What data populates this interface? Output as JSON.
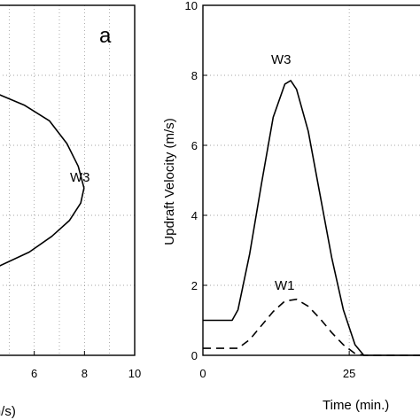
{
  "chart_data": [
    {
      "panel": "a",
      "type": "line",
      "xlabel": "y (m/s)",
      "ylabel": "",
      "xlim": [
        4.6,
        10
      ],
      "ylim": [
        0,
        10
      ],
      "x_ticks": [
        6,
        8,
        10
      ],
      "grid": true,
      "series": [
        {
          "name": "W3",
          "style": "solid",
          "points": [
            [
              4.6,
              7.45
            ],
            [
              5.6,
              7.15
            ],
            [
              6.6,
              6.7
            ],
            [
              7.3,
              6.05
            ],
            [
              7.75,
              5.4
            ],
            [
              7.98,
              4.78
            ],
            [
              7.85,
              4.35
            ],
            [
              7.4,
              3.85
            ],
            [
              6.7,
              3.4
            ],
            [
              5.8,
              2.95
            ],
            [
              4.6,
              2.55
            ]
          ]
        }
      ]
    },
    {
      "panel": "b",
      "type": "line",
      "xlabel": "Time (min.)",
      "ylabel": "Updraft Velocity (m/s)",
      "xlim": [
        0,
        38
      ],
      "ylim": [
        0,
        10
      ],
      "x_ticks": [
        0,
        25
      ],
      "y_ticks": [
        0,
        2,
        4,
        6,
        8,
        10
      ],
      "grid": true,
      "series": [
        {
          "name": "W3",
          "style": "solid",
          "points": [
            [
              0,
              1
            ],
            [
              5,
              1
            ],
            [
              6,
              1.3
            ],
            [
              8,
              2.9
            ],
            [
              10,
              4.9
            ],
            [
              12,
              6.8
            ],
            [
              14,
              7.75
            ],
            [
              15,
              7.85
            ],
            [
              16,
              7.6
            ],
            [
              18,
              6.4
            ],
            [
              20,
              4.6
            ],
            [
              22,
              2.8
            ],
            [
              24,
              1.3
            ],
            [
              26,
              0.3
            ],
            [
              27.5,
              0
            ],
            [
              38,
              0
            ]
          ]
        },
        {
          "name": "W1",
          "style": "dashed",
          "points": [
            [
              0,
              0.2
            ],
            [
              6,
              0.2
            ],
            [
              8,
              0.45
            ],
            [
              10,
              0.85
            ],
            [
              12,
              1.25
            ],
            [
              14,
              1.55
            ],
            [
              16,
              1.6
            ],
            [
              18,
              1.4
            ],
            [
              20,
              1.05
            ],
            [
              22,
              0.65
            ],
            [
              24,
              0.3
            ],
            [
              26,
              0.05
            ],
            [
              27.5,
              0
            ],
            [
              38,
              0
            ]
          ]
        }
      ]
    }
  ]
}
